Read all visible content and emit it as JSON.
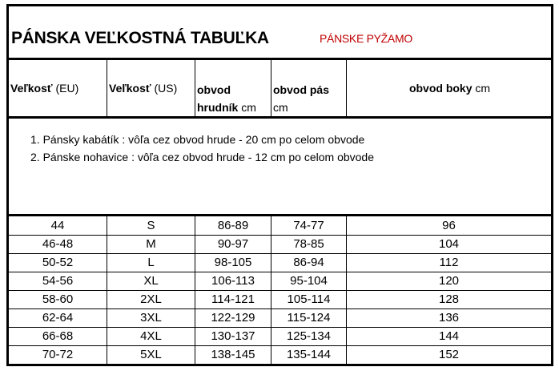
{
  "title": "PÁNSKA VEĽKOSTNÁ TABUĽKA",
  "subtitle": "PÁNSKE PYŽAMO",
  "accent_color": "#c00000",
  "headers": [
    {
      "bold": "Veľkosť",
      "normal": " (EU)"
    },
    {
      "bold": "Veľkosť",
      "normal": " (US)"
    },
    {
      "bold": "obvod hrudník",
      "normal": " cm"
    },
    {
      "bold": "obvod pás",
      "normal": " cm"
    },
    {
      "bold": "obvod boky",
      "normal": " cm"
    }
  ],
  "notes": [
    "1. Pánsky kabátík : vôľa cez obvod hrude - 20 cm po celom obvode",
    "2. Pánske nohavice : vôľa cez obvod hrude - 12 cm po celom obvode"
  ],
  "rows": [
    [
      "44",
      "S",
      "86-89",
      "74-77",
      "96"
    ],
    [
      "46-48",
      "M",
      "90-97",
      "78-85",
      "104"
    ],
    [
      "50-52",
      "L",
      "98-105",
      "86-94",
      "112"
    ],
    [
      "54-56",
      "XL",
      "106-113",
      "95-104",
      "120"
    ],
    [
      "58-60",
      "2XL",
      "114-121",
      "105-114",
      "128"
    ],
    [
      "62-64",
      "3XL",
      "122-129",
      "115-124",
      "136"
    ],
    [
      "66-68",
      "4XL",
      "130-137",
      "125-134",
      "144"
    ],
    [
      "70-72",
      "5XL",
      "138-145",
      "135-144",
      "152"
    ]
  ]
}
